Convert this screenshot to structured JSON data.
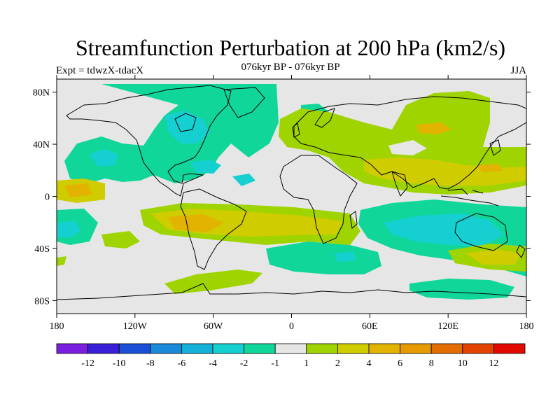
{
  "title": "Streamfunction Perturbation at 200 hPa (km2/s)",
  "subtitle": "076kyr BP - 076kyr BP",
  "left_label": "Expt = tdwzX-tdacX",
  "right_label": "JJA",
  "map": {
    "projection": "cylindrical-equidistant",
    "lon_range": [
      -180,
      180
    ],
    "lat_range": [
      -90,
      90
    ],
    "background": "#e6e6e6",
    "lat_ticks": [
      {
        "value": 80,
        "label": "80N"
      },
      {
        "value": 40,
        "label": "40N"
      },
      {
        "value": 0,
        "label": "0"
      },
      {
        "value": -40,
        "label": "40S"
      },
      {
        "value": -80,
        "label": "80S"
      }
    ],
    "lon_ticks": [
      {
        "value": -180,
        "label": "180"
      },
      {
        "value": -120,
        "label": "120W"
      },
      {
        "value": -60,
        "label": "60W"
      },
      {
        "value": 0,
        "label": "0"
      },
      {
        "value": 60,
        "label": "60E"
      },
      {
        "value": 120,
        "label": "120E"
      },
      {
        "value": 180,
        "label": "180"
      }
    ]
  },
  "colorbar": {
    "colors": [
      "#7a1ee0",
      "#3a1fd8",
      "#1a4fd6",
      "#1b8ad9",
      "#13b0d8",
      "#16cfd0",
      "#10d69a",
      "#e6e6e6",
      "#9fd400",
      "#cfcc00",
      "#e2b300",
      "#e69a00",
      "#e46d00",
      "#e24400",
      "#e00a00"
    ],
    "labels": [
      "-12",
      "-10",
      "-8",
      "-6",
      "-4",
      "-2",
      "-1",
      "1",
      "2",
      "4",
      "6",
      "8",
      "10",
      "12"
    ]
  }
}
